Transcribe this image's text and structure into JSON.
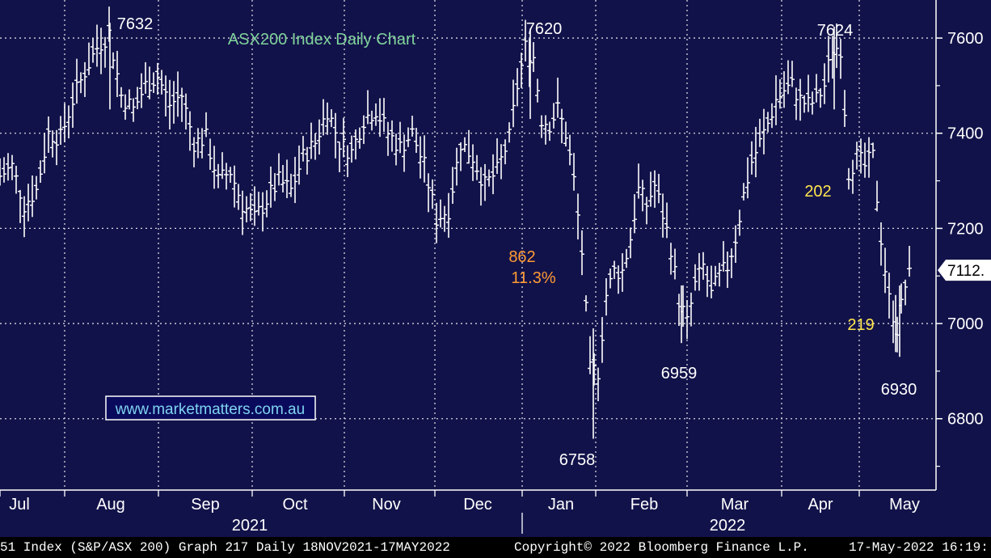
{
  "chart_data": {
    "type": "line",
    "subtype": "ohlc-bars",
    "title": "ASX200 Index Daily Chart",
    "title_color": "#7fd39a",
    "watermark": "www.marketmatters.com.au",
    "ylim": [
      6650,
      7680
    ],
    "y_ticks": [
      6800,
      7000,
      7200,
      7400,
      7600
    ],
    "y_tick_labels": [
      "6800",
      "7000",
      "7200",
      "7400",
      "7600"
    ],
    "last_price_label": "7112.",
    "last_price": 7112,
    "months": [
      "Jul",
      "Aug",
      "Sep",
      "Oct",
      "Nov",
      "Dec",
      "Jan",
      "Feb",
      "Mar",
      "Apr",
      "May"
    ],
    "years": [
      "2021",
      "2022"
    ],
    "grid": true,
    "series": [
      {
        "points": [
          [
            0,
            7310
          ],
          [
            15,
            7330
          ],
          [
            30,
            7250
          ],
          [
            45,
            7280
          ],
          [
            60,
            7400
          ],
          [
            75,
            7390
          ],
          [
            90,
            7470
          ],
          [
            105,
            7530
          ],
          [
            120,
            7580
          ],
          [
            135,
            7610
          ],
          [
            150,
            7480
          ],
          [
            165,
            7450
          ],
          [
            180,
            7500
          ],
          [
            195,
            7520
          ],
          [
            210,
            7460
          ],
          [
            225,
            7480
          ],
          [
            240,
            7380
          ],
          [
            255,
            7390
          ],
          [
            270,
            7300
          ],
          [
            285,
            7320
          ],
          [
            300,
            7250
          ],
          [
            315,
            7220
          ],
          [
            330,
            7260
          ],
          [
            345,
            7300
          ],
          [
            360,
            7280
          ],
          [
            375,
            7350
          ],
          [
            390,
            7380
          ],
          [
            405,
            7450
          ],
          [
            420,
            7380
          ],
          [
            435,
            7360
          ],
          [
            450,
            7430
          ],
          [
            465,
            7450
          ],
          [
            480,
            7400
          ],
          [
            495,
            7370
          ],
          [
            510,
            7400
          ],
          [
            525,
            7330
          ],
          [
            540,
            7220
          ],
          [
            555,
            7240
          ],
          [
            570,
            7380
          ],
          [
            585,
            7350
          ],
          [
            600,
            7290
          ],
          [
            615,
            7320
          ],
          [
            630,
            7390
          ],
          [
            640,
            7500
          ],
          [
            650,
            7580
          ],
          [
            660,
            7560
          ],
          [
            670,
            7430
          ],
          [
            680,
            7420
          ],
          [
            690,
            7450
          ],
          [
            700,
            7400
          ],
          [
            710,
            7300
          ],
          [
            720,
            7150
          ],
          [
            730,
            6900
          ],
          [
            740,
            6900
          ],
          [
            750,
            7060
          ],
          [
            760,
            7110
          ],
          [
            770,
            7110
          ],
          [
            780,
            7180
          ],
          [
            790,
            7280
          ],
          [
            800,
            7250
          ],
          [
            810,
            7290
          ],
          [
            820,
            7230
          ],
          [
            830,
            7160
          ],
          [
            840,
            7050
          ],
          [
            850,
            7000
          ],
          [
            860,
            7080
          ],
          [
            870,
            7120
          ],
          [
            880,
            7060
          ],
          [
            890,
            7100
          ],
          [
            900,
            7120
          ],
          [
            910,
            7180
          ],
          [
            920,
            7270
          ],
          [
            930,
            7340
          ],
          [
            940,
            7380
          ],
          [
            950,
            7420
          ],
          [
            960,
            7470
          ],
          [
            970,
            7490
          ],
          [
            980,
            7500
          ],
          [
            990,
            7470
          ],
          [
            1000,
            7460
          ],
          [
            1010,
            7470
          ],
          [
            1020,
            7500
          ],
          [
            1030,
            7580
          ],
          [
            1040,
            7580
          ],
          [
            1050,
            7320
          ],
          [
            1060,
            7350
          ],
          [
            1070,
            7330
          ],
          [
            1080,
            7350
          ],
          [
            1090,
            7180
          ],
          [
            1100,
            7050
          ],
          [
            1110,
            6990
          ],
          [
            1120,
            7080
          ],
          [
            1128,
            7112
          ]
        ]
      }
    ],
    "annotations": [
      {
        "text": "7632",
        "color": "#ffffff"
      },
      {
        "text": "7620",
        "color": "#ffffff"
      },
      {
        "text": "7624",
        "color": "#ffffff"
      },
      {
        "text": "6758",
        "color": "#ffffff"
      },
      {
        "text": "6959",
        "color": "#ffffff"
      },
      {
        "text": "6930",
        "color": "#ffffff"
      },
      {
        "text": "862",
        "color": "#ff9a33"
      },
      {
        "text": "11.3%",
        "color": "#ff9a33"
      },
      {
        "text": "202",
        "color": "#ffe64d"
      },
      {
        "text": "219",
        "color": "#ffe64d"
      }
    ]
  },
  "footer": {
    "left": "51 Index (S&P/ASX 200) Graph 217  Daily 18NOV2021-17MAY2022",
    "center": "Copyright© 2022 Bloomberg Finance L.P.",
    "right": "17-May-2022 16:19:"
  }
}
